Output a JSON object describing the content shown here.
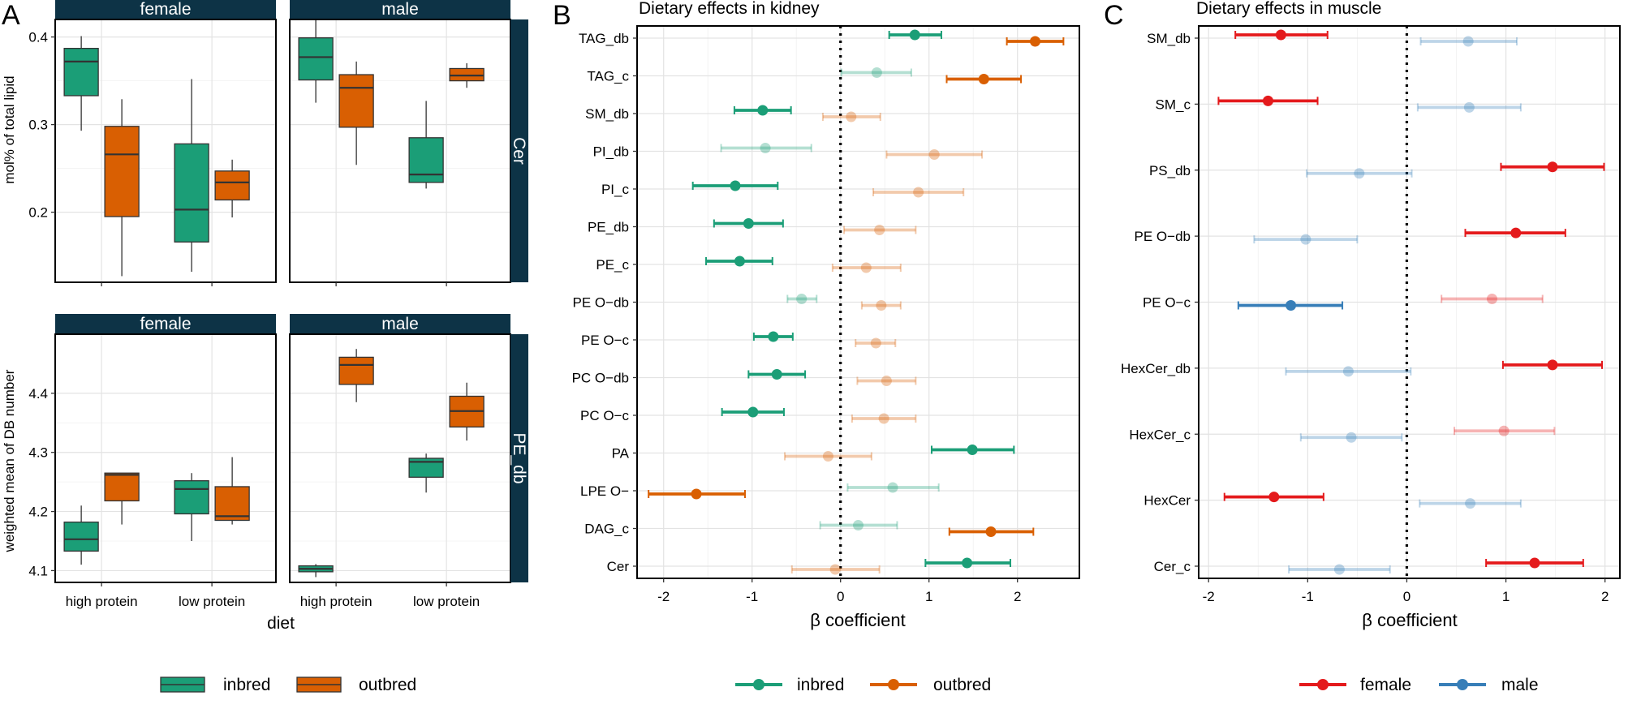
{
  "colors": {
    "inbred": "#1b9e77",
    "outbred": "#d95f02",
    "female": "#e41a1c",
    "male": "#377eb8",
    "strip": "#0d3346",
    "grid": "#e3e3e3",
    "gridMinor": "#f0f0f0"
  },
  "panelA": {
    "letter": "A",
    "xlabel": "diet",
    "categories": [
      "high protein",
      "low protein"
    ],
    "legend": [
      {
        "key": "inbred",
        "label": "inbred"
      },
      {
        "key": "outbred",
        "label": "outbred"
      }
    ],
    "rows": [
      {
        "strip": "Cer",
        "ylabel": "mol% of total lipid",
        "ylim": [
          0.12,
          0.42
        ],
        "ticks": [
          0.2,
          0.3,
          0.4
        ],
        "tickLabels": [
          "0.2",
          "0.3",
          "0.4"
        ],
        "facets": [
          {
            "header": "female",
            "boxes": [
              {
                "category": "high protein",
                "group": "inbred",
                "min": 0.293,
                "q1": 0.333,
                "median": 0.372,
                "q3": 0.387,
                "max": 0.401
              },
              {
                "category": "high protein",
                "group": "outbred",
                "min": 0.127,
                "q1": 0.195,
                "median": 0.266,
                "q3": 0.298,
                "max": 0.329
              },
              {
                "category": "low protein",
                "group": "inbred",
                "min": 0.132,
                "q1": 0.166,
                "median": 0.203,
                "q3": 0.278,
                "max": 0.352
              },
              {
                "category": "low protein",
                "group": "outbred",
                "min": 0.194,
                "q1": 0.214,
                "median": 0.234,
                "q3": 0.247,
                "max": 0.26
              }
            ]
          },
          {
            "header": "male",
            "boxes": [
              {
                "category": "high protein",
                "group": "inbred",
                "min": 0.325,
                "q1": 0.351,
                "median": 0.377,
                "q3": 0.399,
                "max": 0.42
              },
              {
                "category": "high protein",
                "group": "outbred",
                "min": 0.254,
                "q1": 0.297,
                "median": 0.342,
                "q3": 0.357,
                "max": 0.372
              },
              {
                "category": "low protein",
                "group": "inbred",
                "min": 0.227,
                "q1": 0.234,
                "median": 0.243,
                "q3": 0.285,
                "max": 0.327
              },
              {
                "category": "low protein",
                "group": "outbred",
                "min": 0.342,
                "q1": 0.35,
                "median": 0.356,
                "q3": 0.364,
                "max": 0.37
              }
            ]
          }
        ]
      },
      {
        "strip": "PE_db",
        "ylabel": "weighted mean of DB number",
        "ylim": [
          4.08,
          4.5
        ],
        "ticks": [
          4.1,
          4.2,
          4.3,
          4.4
        ],
        "tickLabels": [
          "4.1",
          "4.2",
          "4.3",
          "4.4"
        ],
        "facets": [
          {
            "header": "female",
            "boxes": [
              {
                "category": "high protein",
                "group": "inbred",
                "min": 4.11,
                "q1": 4.133,
                "median": 4.153,
                "q3": 4.182,
                "max": 4.21
              },
              {
                "category": "high protein",
                "group": "outbred",
                "min": 4.178,
                "q1": 4.218,
                "median": 4.262,
                "q3": 4.265,
                "max": 4.265
              },
              {
                "category": "low protein",
                "group": "inbred",
                "min": 4.15,
                "q1": 4.196,
                "median": 4.238,
                "q3": 4.252,
                "max": 4.265
              },
              {
                "category": "low protein",
                "group": "outbred",
                "min": 4.178,
                "q1": 4.185,
                "median": 4.192,
                "q3": 4.242,
                "max": 4.292
              }
            ]
          },
          {
            "header": "male",
            "boxes": [
              {
                "category": "high protein",
                "group": "inbred",
                "min": 4.089,
                "q1": 4.098,
                "median": 4.103,
                "q3": 4.108,
                "max": 4.111
              },
              {
                "category": "high protein",
                "group": "outbred",
                "min": 4.385,
                "q1": 4.415,
                "median": 4.448,
                "q3": 4.461,
                "max": 4.475
              },
              {
                "category": "low protein",
                "group": "inbred",
                "min": 4.232,
                "q1": 4.258,
                "median": 4.284,
                "q3": 4.29,
                "max": 4.298
              },
              {
                "category": "low protein",
                "group": "outbred",
                "min": 4.32,
                "q1": 4.343,
                "median": 4.37,
                "q3": 4.395,
                "max": 4.418
              }
            ]
          }
        ]
      }
    ]
  },
  "chart_data": [
    {
      "type": "forest",
      "panel": "B",
      "title": "Dietary effects in kidney",
      "xlabel": "β coefficient",
      "xlim": [
        -2.3,
        2.7
      ],
      "xticks": [
        -2,
        -1,
        0,
        1,
        2
      ],
      "xtickLabels": [
        "-2",
        "-1",
        "0",
        "1",
        "2"
      ],
      "categories": [
        "TAG_db",
        "TAG_c",
        "SM_db",
        "PI_db",
        "PI_c",
        "PE_db",
        "PE_c",
        "PE O−db",
        "PE O−c",
        "PC O−db",
        "PC O−c",
        "PA",
        "LPE O−",
        "DAG_c",
        "Cer"
      ],
      "series": [
        {
          "name": "inbred",
          "colorKey": "inbred",
          "points": [
            {
              "category": "TAG_db",
              "est": 0.84,
              "lo": 0.55,
              "hi": 1.14,
              "significant": true
            },
            {
              "category": "TAG_c",
              "est": 0.41,
              "lo": 0.01,
              "hi": 0.8,
              "significant": false
            },
            {
              "category": "SM_db",
              "est": -0.88,
              "lo": -1.2,
              "hi": -0.56,
              "significant": true
            },
            {
              "category": "PI_db",
              "est": -0.85,
              "lo": -1.35,
              "hi": -0.33,
              "significant": false
            },
            {
              "category": "PI_c",
              "est": -1.19,
              "lo": -1.67,
              "hi": -0.71,
              "significant": true
            },
            {
              "category": "PE_db",
              "est": -1.04,
              "lo": -1.43,
              "hi": -0.65,
              "significant": true
            },
            {
              "category": "PE_c",
              "est": -1.14,
              "lo": -1.52,
              "hi": -0.77,
              "significant": true
            },
            {
              "category": "PE O−db",
              "est": -0.44,
              "lo": -0.6,
              "hi": -0.27,
              "significant": false
            },
            {
              "category": "PE O−c",
              "est": -0.76,
              "lo": -0.98,
              "hi": -0.54,
              "significant": true
            },
            {
              "category": "PC O−db",
              "est": -0.72,
              "lo": -1.04,
              "hi": -0.4,
              "significant": true
            },
            {
              "category": "PC O−c",
              "est": -0.99,
              "lo": -1.34,
              "hi": -0.64,
              "significant": true
            },
            {
              "category": "PA",
              "est": 1.49,
              "lo": 1.03,
              "hi": 1.96,
              "significant": true
            },
            {
              "category": "LPE O−",
              "est": 0.59,
              "lo": 0.08,
              "hi": 1.11,
              "significant": false
            },
            {
              "category": "DAG_c",
              "est": 0.2,
              "lo": -0.23,
              "hi": 0.64,
              "significant": false
            },
            {
              "category": "Cer",
              "est": 1.43,
              "lo": 0.96,
              "hi": 1.92,
              "significant": true
            }
          ]
        },
        {
          "name": "outbred",
          "colorKey": "outbred",
          "points": [
            {
              "category": "TAG_db",
              "est": 2.2,
              "lo": 1.88,
              "hi": 2.52,
              "significant": true
            },
            {
              "category": "TAG_c",
              "est": 1.62,
              "lo": 1.2,
              "hi": 2.04,
              "significant": true
            },
            {
              "category": "SM_db",
              "est": 0.12,
              "lo": -0.2,
              "hi": 0.45,
              "significant": false
            },
            {
              "category": "PI_db",
              "est": 1.06,
              "lo": 0.52,
              "hi": 1.6,
              "significant": false
            },
            {
              "category": "PI_c",
              "est": 0.88,
              "lo": 0.37,
              "hi": 1.39,
              "significant": false
            },
            {
              "category": "PE_db",
              "est": 0.44,
              "lo": 0.04,
              "hi": 0.85,
              "significant": false
            },
            {
              "category": "PE_c",
              "est": 0.29,
              "lo": -0.09,
              "hi": 0.68,
              "significant": false
            },
            {
              "category": "PE O−db",
              "est": 0.46,
              "lo": 0.24,
              "hi": 0.68,
              "significant": false
            },
            {
              "category": "PE O−c",
              "est": 0.4,
              "lo": 0.17,
              "hi": 0.62,
              "significant": false
            },
            {
              "category": "PC O−db",
              "est": 0.52,
              "lo": 0.19,
              "hi": 0.85,
              "significant": false
            },
            {
              "category": "PC O−c",
              "est": 0.49,
              "lo": 0.13,
              "hi": 0.85,
              "significant": false
            },
            {
              "category": "PA",
              "est": -0.14,
              "lo": -0.63,
              "hi": 0.35,
              "significant": false
            },
            {
              "category": "LPE O−",
              "est": -1.63,
              "lo": -2.17,
              "hi": -1.08,
              "significant": true
            },
            {
              "category": "DAG_c",
              "est": 1.7,
              "lo": 1.23,
              "hi": 2.18,
              "significant": true
            },
            {
              "category": "Cer",
              "est": -0.06,
              "lo": -0.55,
              "hi": 0.44,
              "significant": false
            }
          ]
        }
      ],
      "legend": [
        {
          "key": "inbred",
          "label": "inbred"
        },
        {
          "key": "outbred",
          "label": "outbred"
        }
      ]
    },
    {
      "type": "forest",
      "panel": "C",
      "title": "Dietary effects in muscle",
      "xlabel": "β coefficient",
      "xlim": [
        -2.1,
        2.15
      ],
      "xticks": [
        -2,
        -1,
        0,
        1,
        2
      ],
      "xtickLabels": [
        "-2",
        "-1",
        "0",
        "1",
        "2"
      ],
      "categories": [
        "SM_db",
        "SM_c",
        "PS_db",
        "PE O−db",
        "PE O−c",
        "HexCer_db",
        "HexCer_c",
        "HexCer",
        "Cer_c"
      ],
      "series": [
        {
          "name": "female",
          "colorKey": "female",
          "points": [
            {
              "category": "SM_db",
              "est": -1.27,
              "lo": -1.73,
              "hi": -0.8,
              "significant": true
            },
            {
              "category": "SM_c",
              "est": -1.4,
              "lo": -1.9,
              "hi": -0.9,
              "significant": true
            },
            {
              "category": "PS_db",
              "est": 1.47,
              "lo": 0.95,
              "hi": 1.99,
              "significant": true
            },
            {
              "category": "PE O−db",
              "est": 1.1,
              "lo": 0.59,
              "hi": 1.6,
              "significant": true
            },
            {
              "category": "PE O−c",
              "est": 0.86,
              "lo": 0.35,
              "hi": 1.37,
              "significant": false
            },
            {
              "category": "HexCer_db",
              "est": 1.47,
              "lo": 0.97,
              "hi": 1.97,
              "significant": true
            },
            {
              "category": "HexCer_c",
              "est": 0.98,
              "lo": 0.48,
              "hi": 1.49,
              "significant": false
            },
            {
              "category": "HexCer",
              "est": -1.34,
              "lo": -1.84,
              "hi": -0.84,
              "significant": true
            },
            {
              "category": "Cer_c",
              "est": 1.29,
              "lo": 0.8,
              "hi": 1.78,
              "significant": true
            }
          ]
        },
        {
          "name": "male",
          "colorKey": "male",
          "points": [
            {
              "category": "SM_db",
              "est": 0.62,
              "lo": 0.14,
              "hi": 1.11,
              "significant": false
            },
            {
              "category": "SM_c",
              "est": 0.63,
              "lo": 0.11,
              "hi": 1.15,
              "significant": false
            },
            {
              "category": "PS_db",
              "est": -0.48,
              "lo": -1.01,
              "hi": 0.05,
              "significant": false
            },
            {
              "category": "PE O−db",
              "est": -1.02,
              "lo": -1.54,
              "hi": -0.5,
              "significant": false
            },
            {
              "category": "PE O−c",
              "est": -1.17,
              "lo": -1.7,
              "hi": -0.65,
              "significant": true
            },
            {
              "category": "HexCer_db",
              "est": -0.59,
              "lo": -1.22,
              "hi": 0.04,
              "significant": false
            },
            {
              "category": "HexCer_c",
              "est": -0.56,
              "lo": -1.07,
              "hi": -0.05,
              "significant": false
            },
            {
              "category": "HexCer",
              "est": 0.64,
              "lo": 0.13,
              "hi": 1.15,
              "significant": false
            },
            {
              "category": "Cer_c",
              "est": -0.68,
              "lo": -1.19,
              "hi": -0.17,
              "significant": false
            }
          ]
        }
      ],
      "legend": [
        {
          "key": "female",
          "label": "female"
        },
        {
          "key": "male",
          "label": "male"
        }
      ]
    }
  ]
}
